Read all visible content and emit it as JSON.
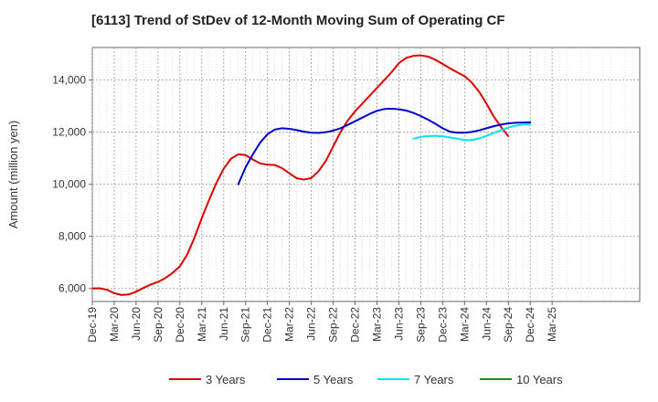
{
  "chart_data": {
    "type": "line",
    "title": "[6113]  Trend of StDev of 12-Month Moving Sum of Operating CF",
    "ylabel": "Amount (million yen)",
    "xlabel": "",
    "ylim": [
      5500,
      15250
    ],
    "yticks": [
      6000,
      8000,
      10000,
      12000,
      14000
    ],
    "ytick_labels": [
      "6,000",
      "8,000",
      "10,000",
      "12,000",
      "14,000"
    ],
    "xlim_months": [
      0,
      75
    ],
    "xtick_labels": [
      "Dec-19",
      "Mar-20",
      "Jun-20",
      "Sep-20",
      "Dec-20",
      "Mar-21",
      "Jun-21",
      "Sep-21",
      "Dec-21",
      "Mar-22",
      "Jun-22",
      "Sep-22",
      "Dec-22",
      "Mar-23",
      "Jun-23",
      "Sep-23",
      "Dec-23",
      "Mar-24",
      "Jun-24",
      "Sep-24",
      "Dec-24",
      "Mar-25"
    ],
    "grid": true,
    "legend_position": "bottom",
    "series": [
      {
        "name": "3 Years",
        "color": "#dd0000",
        "start_month": 0,
        "values": [
          6000,
          6010,
          5950,
          5820,
          5750,
          5770,
          5880,
          6020,
          6150,
          6250,
          6400,
          6600,
          6850,
          7300,
          7950,
          8700,
          9400,
          10050,
          10600,
          10980,
          11150,
          11120,
          10950,
          10800,
          10750,
          10740,
          10620,
          10420,
          10230,
          10180,
          10240,
          10500,
          10900,
          11450,
          12000,
          12450,
          12800,
          13100,
          13400,
          13700,
          14000,
          14300,
          14650,
          14850,
          14930,
          14950,
          14900,
          14780,
          14620,
          14450,
          14300,
          14150,
          13900,
          13550,
          13100,
          12600,
          12200,
          11850
        ]
      },
      {
        "name": "5 Years",
        "color": "#0000cc",
        "start_month": 20,
        "values": [
          10000,
          10650,
          11150,
          11600,
          11920,
          12100,
          12150,
          12130,
          12080,
          12020,
          11980,
          11970,
          12000,
          12060,
          12150,
          12280,
          12420,
          12560,
          12700,
          12820,
          12890,
          12900,
          12880,
          12830,
          12740,
          12620,
          12480,
          12320,
          12150,
          12020,
          11980,
          11980,
          12010,
          12070,
          12150,
          12230,
          12290,
          12340,
          12360,
          12370,
          12380
        ]
      },
      {
        "name": "7 Years",
        "color": "#00e5ee",
        "start_month": 44,
        "values": [
          11750,
          11820,
          11850,
          11860,
          11840,
          11800,
          11750,
          11700,
          11700,
          11760,
          11860,
          11970,
          12080,
          12180,
          12250,
          12290,
          12300
        ]
      },
      {
        "name": "10 Years",
        "color": "#228B22",
        "start_month": 0,
        "values": []
      }
    ]
  }
}
